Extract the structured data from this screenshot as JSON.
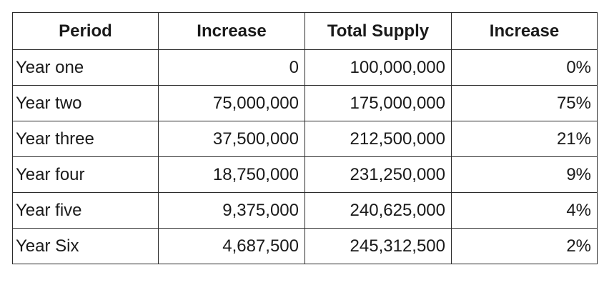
{
  "table": {
    "headers": [
      "Period",
      "Increase",
      "Total Supply",
      "Increase"
    ],
    "rows": [
      {
        "period": "Year one",
        "increase": "0",
        "total_supply": "100,000,000",
        "increase_pct": "0%"
      },
      {
        "period": "Year two",
        "increase": "75,000,000",
        "total_supply": "175,000,000",
        "increase_pct": "75%"
      },
      {
        "period": "Year three",
        "increase": "37,500,000",
        "total_supply": "212,500,000",
        "increase_pct": "21%"
      },
      {
        "period": "Year four",
        "increase": "18,750,000",
        "total_supply": "231,250,000",
        "increase_pct": "9%"
      },
      {
        "period": "Year five",
        "increase": "9,375,000",
        "total_supply": "240,625,000",
        "increase_pct": "4%"
      },
      {
        "period": "Year Six",
        "increase": "4,687,500",
        "total_supply": "245,312,500",
        "increase_pct": "2%"
      }
    ]
  }
}
